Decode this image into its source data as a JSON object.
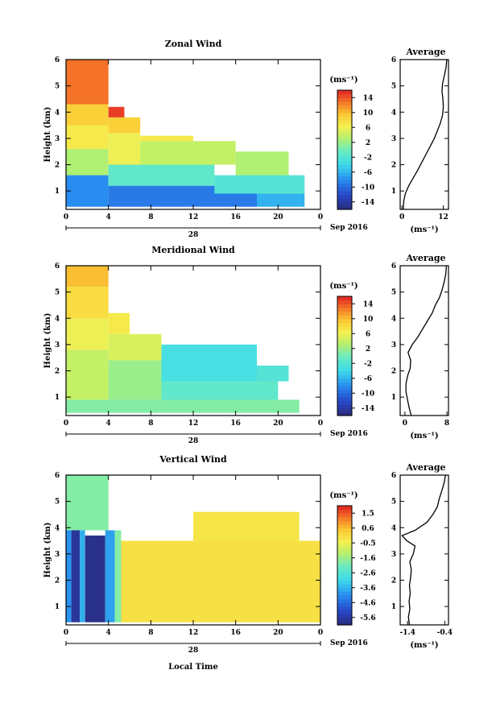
{
  "chart_data": [
    {
      "type": "heatmap",
      "title": "Zonal Wind",
      "ylabel": "Height (km)",
      "ylim": [
        0.3,
        6
      ],
      "yticks": [
        "1",
        "2",
        "3",
        "4",
        "5",
        "6"
      ],
      "xlim": [
        0,
        24
      ],
      "xticks": [
        "0",
        "4",
        "8",
        "12",
        "16",
        "20",
        "0"
      ],
      "date_day": "28",
      "date_label": "Sep 2016",
      "colorbar": {
        "unit": "(ms⁻¹)",
        "min": -16,
        "max": 16,
        "ticks": [
          "14",
          "10",
          "6",
          "2",
          "-2",
          "-6",
          "-10",
          "-14"
        ]
      },
      "profile": {
        "title": "Average",
        "xlabel": "(ms⁻¹)",
        "xlim": [
          -0.5,
          13.5
        ],
        "xticks": [
          "0",
          "12"
        ],
        "points": [
          [
            0.3,
            0.4
          ],
          [
            0.6,
            0.5
          ],
          [
            0.9,
            1.0
          ],
          [
            1.2,
            2.0
          ],
          [
            1.5,
            3.3
          ],
          [
            1.8,
            4.6
          ],
          [
            2.1,
            5.8
          ],
          [
            2.4,
            7.0
          ],
          [
            2.7,
            8.2
          ],
          [
            3.0,
            9.4
          ],
          [
            3.3,
            10.3
          ],
          [
            3.6,
            11.2
          ],
          [
            3.9,
            11.8
          ],
          [
            4.2,
            12.0
          ],
          [
            4.5,
            11.9
          ],
          [
            4.8,
            11.6
          ],
          [
            5.1,
            11.8
          ],
          [
            5.4,
            12.3
          ],
          [
            5.7,
            12.8
          ],
          [
            6.0,
            13.0
          ]
        ]
      },
      "regions": [
        {
          "t0": 0,
          "t1": 4,
          "h0": 0.4,
          "h1": 1.6,
          "v": -8
        },
        {
          "t0": 4,
          "t1": 18,
          "h0": 0.4,
          "h1": 1.2,
          "v": -9
        },
        {
          "t0": 18,
          "t1": 22.5,
          "h0": 0.4,
          "h1": 0.9,
          "v": -6
        },
        {
          "t0": 0,
          "t1": 4,
          "h0": 1.6,
          "h1": 2.6,
          "v": 3
        },
        {
          "t0": 4,
          "t1": 14,
          "h0": 1.2,
          "h1": 2.0,
          "v": -1
        },
        {
          "t0": 14,
          "t1": 22.5,
          "h0": 0.9,
          "h1": 1.6,
          "v": -2
        },
        {
          "t0": 0,
          "t1": 4,
          "h0": 2.6,
          "h1": 3.5,
          "v": 7
        },
        {
          "t0": 4,
          "t1": 7,
          "h0": 2.0,
          "h1": 3.2,
          "v": 6
        },
        {
          "t0": 7,
          "t1": 16,
          "h0": 2.0,
          "h1": 2.9,
          "v": 4
        },
        {
          "t0": 16,
          "t1": 21,
          "h0": 1.6,
          "h1": 2.5,
          "v": 3
        },
        {
          "t0": 0,
          "t1": 4,
          "h0": 3.5,
          "h1": 4.3,
          "v": 9
        },
        {
          "t0": 4,
          "t1": 7,
          "h0": 3.2,
          "h1": 3.8,
          "v": 9
        },
        {
          "t0": 7,
          "t1": 12,
          "h0": 2.9,
          "h1": 3.1,
          "v": 7
        },
        {
          "t0": 0,
          "t1": 4,
          "h0": 4.3,
          "h1": 6.0,
          "v": 13
        },
        {
          "t0": 4,
          "t1": 5.5,
          "h0": 3.8,
          "h1": 4.2,
          "v": 15
        }
      ]
    },
    {
      "type": "heatmap",
      "title": "Meridional Wind",
      "ylabel": "Height (km)",
      "ylim": [
        0.3,
        6
      ],
      "yticks": [
        "1",
        "2",
        "3",
        "4",
        "5",
        "6"
      ],
      "xlim": [
        0,
        24
      ],
      "xticks": [
        "0",
        "4",
        "8",
        "12",
        "16",
        "20",
        "0"
      ],
      "date_day": "28",
      "date_label": "Sep 2016",
      "colorbar": {
        "unit": "(ms⁻¹)",
        "min": -16,
        "max": 16,
        "ticks": [
          "14",
          "10",
          "6",
          "2",
          "-2",
          "-6",
          "-10",
          "-14"
        ]
      },
      "profile": {
        "title": "Average",
        "xlabel": "(ms⁻¹)",
        "xlim": [
          -0.9,
          8.3
        ],
        "xticks": [
          "0",
          "8"
        ],
        "points": [
          [
            0.3,
            1.2
          ],
          [
            0.6,
            0.8
          ],
          [
            0.9,
            0.5
          ],
          [
            1.2,
            0.2
          ],
          [
            1.5,
            0.2
          ],
          [
            1.8,
            0.5
          ],
          [
            2.1,
            1.0
          ],
          [
            2.4,
            1.1
          ],
          [
            2.7,
            0.6
          ],
          [
            3.0,
            1.4
          ],
          [
            3.3,
            2.5
          ],
          [
            3.6,
            3.4
          ],
          [
            3.9,
            4.3
          ],
          [
            4.2,
            5.2
          ],
          [
            4.5,
            5.8
          ],
          [
            4.8,
            6.6
          ],
          [
            5.1,
            7.1
          ],
          [
            5.4,
            7.5
          ],
          [
            5.7,
            7.8
          ],
          [
            6.0,
            7.9
          ]
        ]
      },
      "regions": [
        {
          "t0": 0,
          "t1": 22,
          "h0": 0.4,
          "h1": 0.9,
          "v": 1
        },
        {
          "t0": 0,
          "t1": 4,
          "h0": 0.9,
          "h1": 2.8,
          "v": 4
        },
        {
          "t0": 4,
          "t1": 9,
          "h0": 0.9,
          "h1": 2.4,
          "v": 2
        },
        {
          "t0": 9,
          "t1": 20,
          "h0": 0.9,
          "h1": 1.6,
          "v": -1
        },
        {
          "t0": 9,
          "t1": 18,
          "h0": 1.6,
          "h1": 3.0,
          "v": -3
        },
        {
          "t0": 18,
          "t1": 21,
          "h0": 1.6,
          "h1": 2.2,
          "v": -2
        },
        {
          "t0": 0,
          "t1": 4,
          "h0": 2.8,
          "h1": 4.0,
          "v": 6
        },
        {
          "t0": 4,
          "t1": 9,
          "h0": 2.4,
          "h1": 3.4,
          "v": 5
        },
        {
          "t0": 0,
          "t1": 4,
          "h0": 4.0,
          "h1": 5.2,
          "v": 8
        },
        {
          "t0": 4,
          "t1": 6,
          "h0": 3.4,
          "h1": 4.2,
          "v": 7
        },
        {
          "t0": 0,
          "t1": 4,
          "h0": 5.2,
          "h1": 6.0,
          "v": 10
        }
      ]
    },
    {
      "type": "heatmap",
      "title": "Vertical Wind",
      "ylabel": "Height (km)",
      "xlabel": "Local Time",
      "ylim": [
        0.3,
        6
      ],
      "yticks": [
        "1",
        "2",
        "3",
        "4",
        "5",
        "6"
      ],
      "xlim": [
        0,
        24
      ],
      "xticks": [
        "0",
        "4",
        "8",
        "12",
        "16",
        "20",
        "0"
      ],
      "date_day": "28",
      "date_label": "Sep 2016",
      "colorbar": {
        "unit": "(ms⁻¹)",
        "min": -6.1,
        "max": 2.0,
        "ticks": [
          "1.5",
          "0.6",
          "-0.5",
          "-1.6",
          "-2.6",
          "-3.6",
          "-4.6",
          "-5.6"
        ]
      },
      "profile": {
        "title": "Average",
        "xlabel": "(ms⁻¹)",
        "xlim": [
          -1.6,
          -0.3
        ],
        "xticks": [
          "-1.4",
          "-0.4"
        ],
        "points": [
          [
            0.3,
            -1.35
          ],
          [
            0.6,
            -1.38
          ],
          [
            0.9,
            -1.34
          ],
          [
            1.2,
            -1.36
          ],
          [
            1.5,
            -1.33
          ],
          [
            1.8,
            -1.35
          ],
          [
            2.1,
            -1.32
          ],
          [
            2.4,
            -1.3
          ],
          [
            2.7,
            -1.34
          ],
          [
            3.0,
            -1.25
          ],
          [
            3.3,
            -1.2
          ],
          [
            3.5,
            -1.42
          ],
          [
            3.7,
            -1.55
          ],
          [
            3.9,
            -1.2
          ],
          [
            4.2,
            -0.88
          ],
          [
            4.5,
            -0.72
          ],
          [
            4.8,
            -0.6
          ],
          [
            5.1,
            -0.55
          ],
          [
            5.4,
            -0.48
          ],
          [
            5.7,
            -0.42
          ],
          [
            6.0,
            -0.38
          ]
        ]
      },
      "regions": [
        {
          "t0": 0,
          "t1": 4,
          "h0": 3.9,
          "h1": 6.0,
          "v": -1.8
        },
        {
          "t0": 0,
          "t1": 0.5,
          "h0": 0.4,
          "h1": 3.9,
          "v": -4.0
        },
        {
          "t0": 0.5,
          "t1": 1.3,
          "h0": 0.4,
          "h1": 3.9,
          "v": -5.7
        },
        {
          "t0": 1.3,
          "t1": 1.8,
          "h0": 0.4,
          "h1": 3.9,
          "v": -3.6
        },
        {
          "t0": 1.8,
          "t1": 3.7,
          "h0": 0.4,
          "h1": 3.7,
          "v": -5.9
        },
        {
          "t0": 3.7,
          "t1": 4.6,
          "h0": 0.4,
          "h1": 3.9,
          "v": -3.8
        },
        {
          "t0": 4.6,
          "t1": 5.2,
          "h0": 0.4,
          "h1": 3.9,
          "v": -1.8
        },
        {
          "t0": 5.2,
          "t1": 24,
          "h0": 0.4,
          "h1": 3.5,
          "v": -0.1
        },
        {
          "t0": 12,
          "t1": 22,
          "h0": 3.5,
          "h1": 4.6,
          "v": -0.2
        }
      ]
    }
  ]
}
